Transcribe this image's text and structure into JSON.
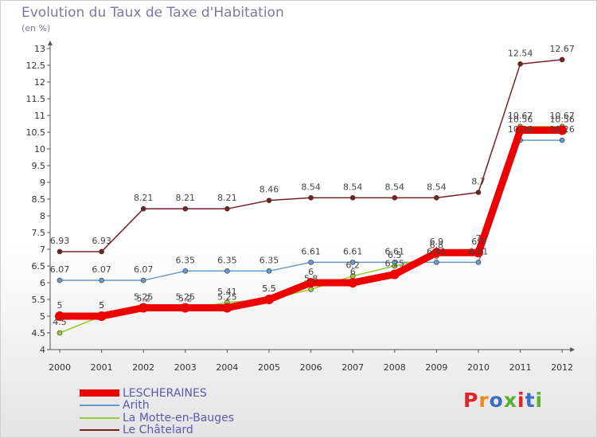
{
  "chart_data": {
    "type": "line",
    "title": "Evolution du Taux de Taxe d'Habitation",
    "subtitle": "(en %)",
    "x": [
      "2000",
      "2001",
      "2002",
      "2003",
      "2004",
      "2005",
      "2006",
      "2007",
      "2008",
      "2009",
      "2010",
      "2011",
      "2012"
    ],
    "ylim": [
      4,
      13
    ],
    "y_ticks": [
      "4",
      "4.5",
      "5",
      "5.5",
      "6",
      "6.5",
      "7",
      "7.5",
      "8",
      "8.5",
      "9",
      "9.5",
      "10",
      "10.5",
      "11",
      "11.5",
      "12",
      "12.5",
      "13"
    ],
    "grid": false,
    "legend_position": "bottom-left",
    "series": [
      {
        "name": "LESCHERAINES",
        "color": "#ee0000",
        "values": [
          5,
          5,
          5.25,
          5.25,
          5.25,
          5.5,
          6,
          6,
          6.25,
          6.9,
          6.9,
          10.56,
          10.56
        ],
        "labels": [
          "5",
          "5",
          "5.25",
          "5.25",
          "5.25",
          "5.5",
          "6",
          "6",
          "6.25",
          "6.9",
          "6.9",
          "10.56",
          "10.56"
        ]
      },
      {
        "name": "Arith",
        "color": "#6699cc",
        "values": [
          6.07,
          6.07,
          6.07,
          6.35,
          6.35,
          6.35,
          6.61,
          6.61,
          6.61,
          6.61,
          6.61,
          10.26,
          10.26
        ],
        "labels": [
          "6.07",
          "6.07",
          "6.07",
          "6.35",
          "6.35",
          "6.35",
          "6.61",
          "6.61",
          "6.61",
          "6.61",
          "6.61",
          "10.26",
          "10.26"
        ]
      },
      {
        "name": "La Motte-en-Bauges",
        "color": "#99cc33",
        "values": [
          4.5,
          5,
          5.2,
          5.2,
          5.41,
          5.5,
          5.8,
          6.2,
          6.5,
          6.8,
          7.0,
          10.67,
          10.67
        ],
        "labels": [
          "4.5",
          "5",
          "5.2",
          "5.2",
          "5.41",
          "5.5",
          "5.8",
          "6.2",
          "6.5",
          "6.8",
          "7",
          "10.67",
          "10.67"
        ]
      },
      {
        "name": "Le Châtelard",
        "color": "#772222",
        "values": [
          6.93,
          6.93,
          8.21,
          8.21,
          8.21,
          8.46,
          8.54,
          8.54,
          8.54,
          8.54,
          8.7,
          12.54,
          12.67
        ],
        "labels": [
          "6.93",
          "6.93",
          "8.21",
          "8.21",
          "8.21",
          "8.46",
          "8.54",
          "8.54",
          "8.54",
          "8.54",
          "8.7",
          "12.54",
          "12.67"
        ]
      }
    ]
  },
  "branding": {
    "logo_text": "Proxiti",
    "logo_colors": [
      "#e2232a",
      "#f08a1c",
      "#3b6fc4",
      "#58b030",
      "#e2232a",
      "#3b6fc4",
      "#58b030"
    ]
  }
}
